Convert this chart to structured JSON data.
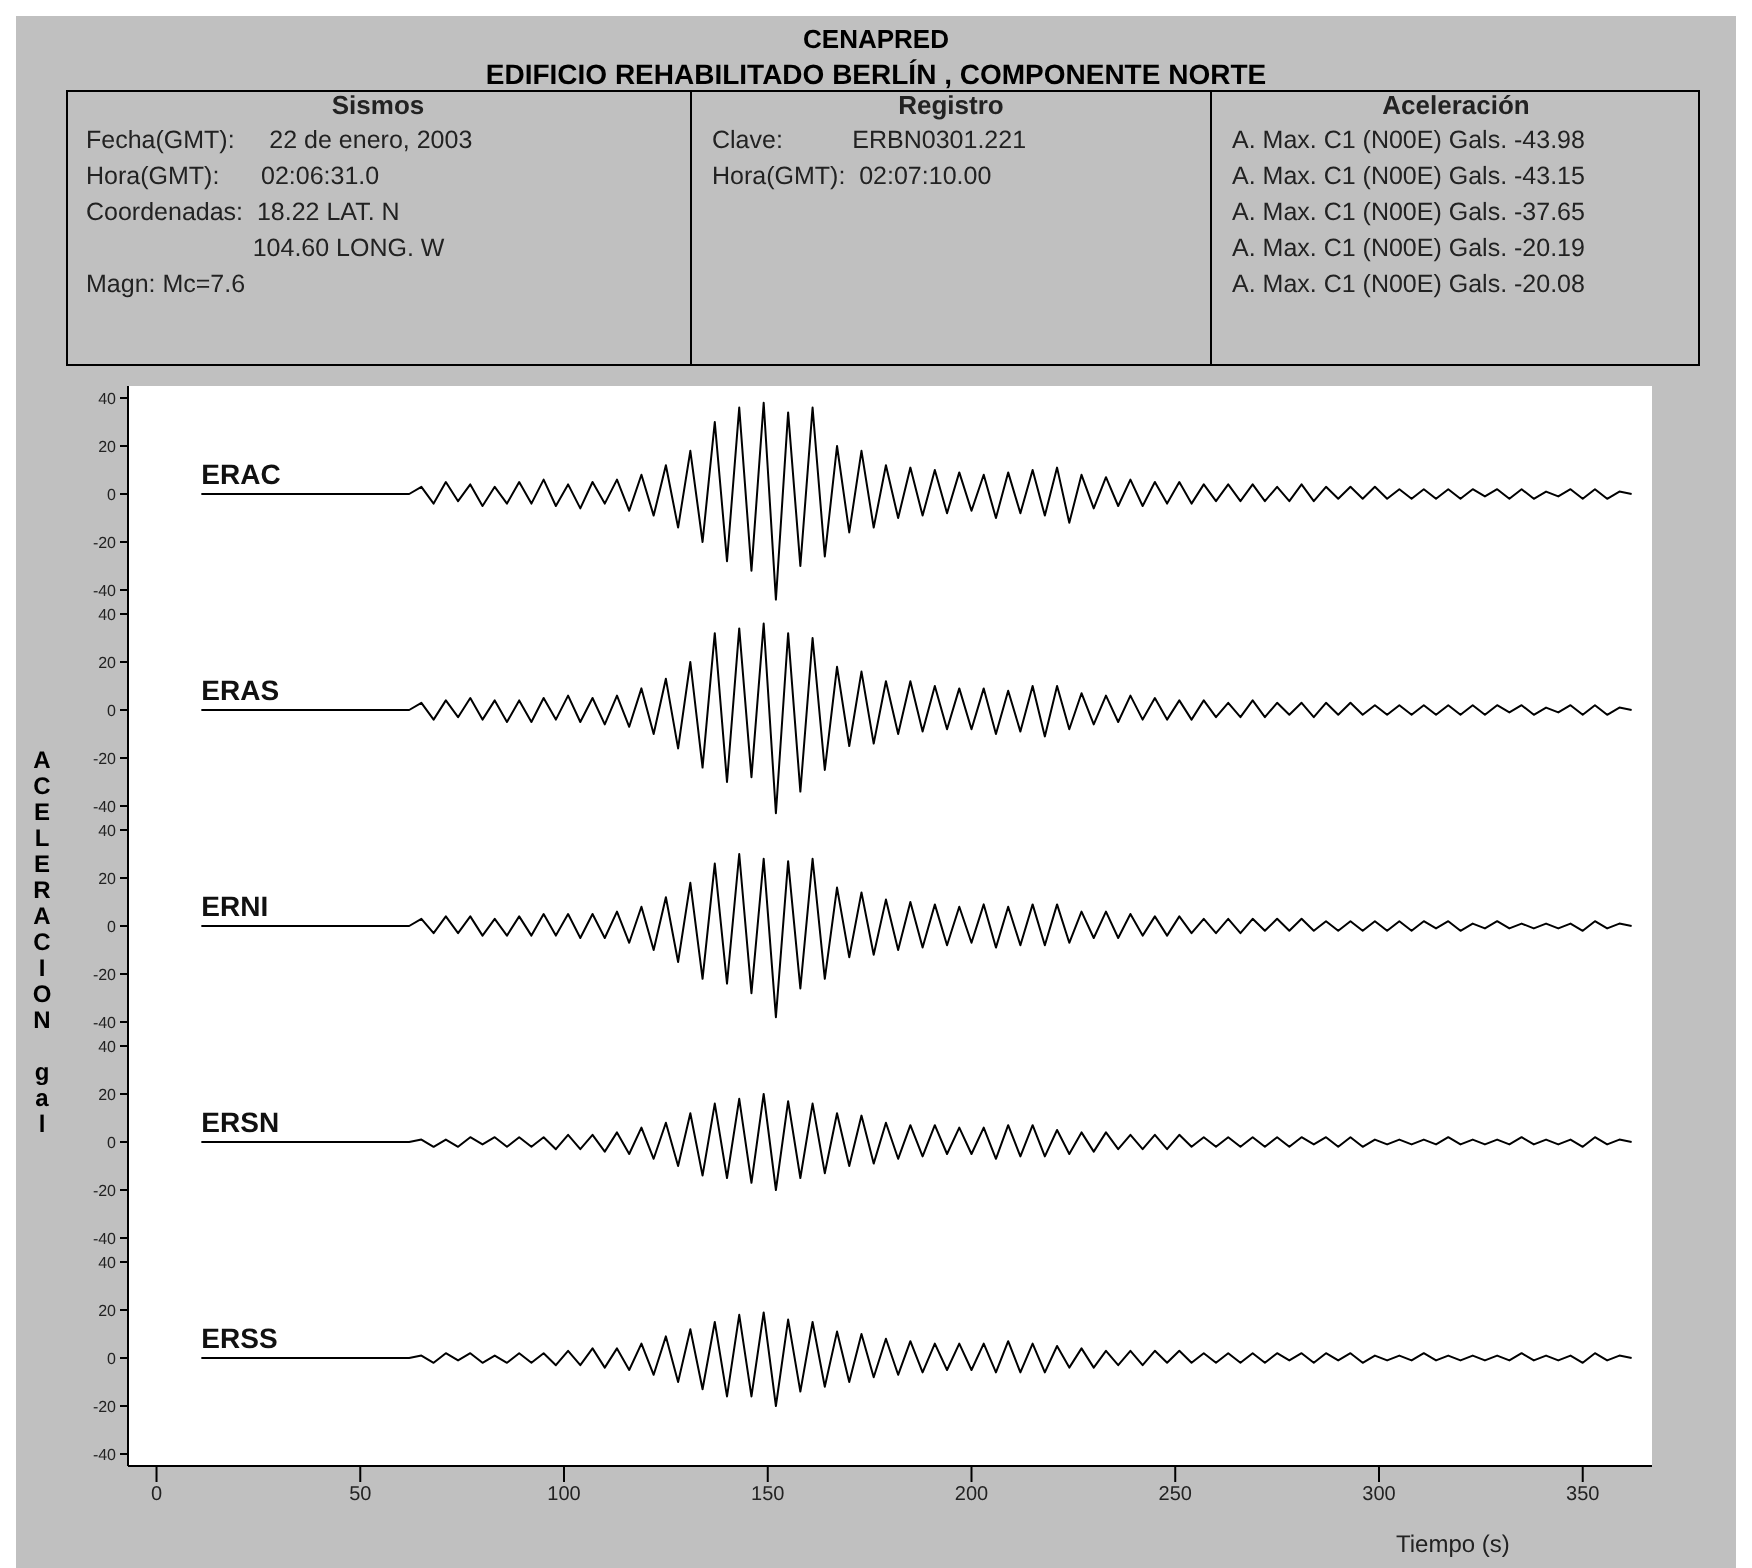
{
  "chart_data": [
    {
      "type": "line",
      "title": "CENAPRED",
      "subtitle": "EDIFICIO REHABILITADO BERLÍN , COMPONENTE NORTE",
      "ylabel": "ACELERACION gal",
      "annotations": [
        "Sismos",
        "Fecha(GMT):     22 de enero, 2003",
        "Hora(GMT):      02:06:31.0",
        "Coordenadas:  18.22 LAT. N",
        "                        104.60 LONG. W",
        "Magn: Mc=7.6",
        "Registro",
        "Clave:          ERBN0301.221",
        "Hora(GMT):  02:07:10.00",
        "Aceleración",
        "A. Max. C1 (N00E) Gals. -43.98",
        "A. Max. C1 (N00E) Gals. -43.15",
        "A. Max. C1 (N00E) Gals. -37.65",
        "A. Max. C1 (N00E) Gals. -20.19",
        "A. Max. C1 (N00E) Gals. -20.08"
      ],
      "x": [
        11,
        62,
        65,
        68,
        71,
        74,
        77,
        80,
        83,
        86,
        89,
        92,
        95,
        98,
        101,
        104,
        107,
        110,
        113,
        116,
        119,
        122,
        125,
        128,
        131,
        134,
        137,
        140,
        143,
        146,
        149,
        152,
        155,
        158,
        161,
        164,
        167,
        170,
        173,
        176,
        179,
        182,
        185,
        188,
        191,
        194,
        197,
        200,
        203,
        206,
        209,
        212,
        215,
        218,
        221,
        224,
        227,
        230,
        233,
        236,
        239,
        242,
        245,
        248,
        251,
        254,
        257,
        260,
        263,
        266,
        269,
        272,
        275,
        278,
        281,
        284,
        287,
        290,
        293,
        296,
        299,
        302,
        305,
        308,
        311,
        314,
        317,
        320,
        323,
        326,
        329,
        332,
        335,
        338,
        341,
        344,
        347,
        350,
        353,
        356,
        359,
        362
      ],
      "series": [
        {
          "name": "ERAC",
          "color": "#000000",
          "values": [
            0,
            0,
            3,
            -4,
            5,
            -3,
            4,
            -5,
            3,
            -4,
            5,
            -4,
            6,
            -5,
            4,
            -6,
            5,
            -4,
            6,
            -7,
            8,
            -9,
            12,
            -14,
            18,
            -20,
            30,
            -28,
            36,
            -32,
            38,
            -44,
            34,
            -30,
            36,
            -26,
            20,
            -16,
            18,
            -14,
            12,
            -10,
            11,
            -9,
            10,
            -8,
            9,
            -7,
            8,
            -10,
            9,
            -8,
            10,
            -9,
            11,
            -12,
            8,
            -6,
            7,
            -5,
            6,
            -5,
            5,
            -4,
            5,
            -4,
            4,
            -3,
            4,
            -3,
            4,
            -3,
            3,
            -3,
            4,
            -3,
            3,
            -2,
            3,
            -2,
            3,
            -2,
            2,
            -2,
            2,
            -2,
            2,
            -2,
            2,
            -1,
            2,
            -2,
            2,
            -2,
            1,
            -1,
            2,
            -2,
            2,
            -2,
            1,
            0
          ]
        }
      ],
      "xlim": [
        -7,
        367
      ],
      "xticks": [
        0,
        50,
        100,
        150,
        200,
        250,
        300,
        350
      ],
      "ylim": [
        -45,
        45
      ],
      "yticks": [
        40,
        20,
        0,
        -20,
        -40
      ],
      "tick_labels": "y",
      "grid": false,
      "marker": "none",
      "line_style": "solid"
    },
    {
      "type": "line",
      "x": [
        11,
        62,
        65,
        68,
        71,
        74,
        77,
        80,
        83,
        86,
        89,
        92,
        95,
        98,
        101,
        104,
        107,
        110,
        113,
        116,
        119,
        122,
        125,
        128,
        131,
        134,
        137,
        140,
        143,
        146,
        149,
        152,
        155,
        158,
        161,
        164,
        167,
        170,
        173,
        176,
        179,
        182,
        185,
        188,
        191,
        194,
        197,
        200,
        203,
        206,
        209,
        212,
        215,
        218,
        221,
        224,
        227,
        230,
        233,
        236,
        239,
        242,
        245,
        248,
        251,
        254,
        257,
        260,
        263,
        266,
        269,
        272,
        275,
        278,
        281,
        284,
        287,
        290,
        293,
        296,
        299,
        302,
        305,
        308,
        311,
        314,
        317,
        320,
        323,
        326,
        329,
        332,
        335,
        338,
        341,
        344,
        347,
        350,
        353,
        356,
        359,
        362
      ],
      "series": [
        {
          "name": "ERAS",
          "color": "#000000",
          "values": [
            0,
            0,
            3,
            -4,
            4,
            -3,
            5,
            -4,
            4,
            -5,
            4,
            -5,
            5,
            -4,
            6,
            -5,
            5,
            -6,
            6,
            -7,
            9,
            -10,
            13,
            -16,
            20,
            -24,
            32,
            -30,
            34,
            -28,
            36,
            -43,
            32,
            -34,
            30,
            -25,
            18,
            -15,
            16,
            -14,
            12,
            -10,
            12,
            -9,
            10,
            -8,
            9,
            -8,
            9,
            -10,
            8,
            -9,
            10,
            -11,
            10,
            -8,
            7,
            -6,
            6,
            -5,
            6,
            -4,
            5,
            -4,
            4,
            -4,
            4,
            -3,
            3,
            -3,
            4,
            -3,
            3,
            -2,
            3,
            -3,
            3,
            -2,
            3,
            -2,
            2,
            -2,
            2,
            -2,
            2,
            -2,
            2,
            -2,
            2,
            -2,
            2,
            -1,
            2,
            -2,
            1,
            -1,
            2,
            -2,
            2,
            -2,
            1,
            0
          ]
        }
      ],
      "xlim": [
        -7,
        367
      ],
      "xticks": [
        0,
        50,
        100,
        150,
        200,
        250,
        300,
        350
      ],
      "ylim": [
        -45,
        45
      ],
      "yticks": [
        40,
        20,
        0,
        -20,
        -40
      ],
      "tick_labels": "y",
      "grid": false,
      "marker": "none",
      "line_style": "solid"
    },
    {
      "type": "line",
      "x": [
        11,
        62,
        65,
        68,
        71,
        74,
        77,
        80,
        83,
        86,
        89,
        92,
        95,
        98,
        101,
        104,
        107,
        110,
        113,
        116,
        119,
        122,
        125,
        128,
        131,
        134,
        137,
        140,
        143,
        146,
        149,
        152,
        155,
        158,
        161,
        164,
        167,
        170,
        173,
        176,
        179,
        182,
        185,
        188,
        191,
        194,
        197,
        200,
        203,
        206,
        209,
        212,
        215,
        218,
        221,
        224,
        227,
        230,
        233,
        236,
        239,
        242,
        245,
        248,
        251,
        254,
        257,
        260,
        263,
        266,
        269,
        272,
        275,
        278,
        281,
        284,
        287,
        290,
        293,
        296,
        299,
        302,
        305,
        308,
        311,
        314,
        317,
        320,
        323,
        326,
        329,
        332,
        335,
        338,
        341,
        344,
        347,
        350,
        353,
        356,
        359,
        362
      ],
      "series": [
        {
          "name": "ERNI",
          "color": "#000000",
          "values": [
            0,
            0,
            3,
            -3,
            4,
            -3,
            4,
            -4,
            3,
            -4,
            4,
            -4,
            5,
            -4,
            5,
            -5,
            5,
            -5,
            6,
            -7,
            8,
            -10,
            12,
            -15,
            18,
            -22,
            26,
            -24,
            30,
            -28,
            28,
            -38,
            27,
            -26,
            28,
            -22,
            16,
            -13,
            14,
            -12,
            11,
            -10,
            10,
            -9,
            9,
            -8,
            8,
            -7,
            9,
            -9,
            8,
            -8,
            9,
            -8,
            9,
            -7,
            6,
            -5,
            6,
            -5,
            5,
            -4,
            4,
            -4,
            4,
            -3,
            3,
            -3,
            3,
            -3,
            3,
            -2,
            3,
            -2,
            3,
            -2,
            2,
            -2,
            2,
            -2,
            2,
            -2,
            2,
            -2,
            2,
            -1,
            2,
            -2,
            1,
            -1,
            2,
            -1,
            1,
            -1,
            1,
            -1,
            1,
            -2,
            2,
            -1,
            1,
            0
          ]
        }
      ],
      "xlim": [
        -7,
        367
      ],
      "xticks": [
        0,
        50,
        100,
        150,
        200,
        250,
        300,
        350
      ],
      "ylim": [
        -45,
        45
      ],
      "yticks": [
        40,
        20,
        0,
        -20,
        -40
      ],
      "tick_labels": "y",
      "grid": false,
      "marker": "none",
      "line_style": "solid"
    },
    {
      "type": "line",
      "x": [
        11,
        62,
        65,
        68,
        71,
        74,
        77,
        80,
        83,
        86,
        89,
        92,
        95,
        98,
        101,
        104,
        107,
        110,
        113,
        116,
        119,
        122,
        125,
        128,
        131,
        134,
        137,
        140,
        143,
        146,
        149,
        152,
        155,
        158,
        161,
        164,
        167,
        170,
        173,
        176,
        179,
        182,
        185,
        188,
        191,
        194,
        197,
        200,
        203,
        206,
        209,
        212,
        215,
        218,
        221,
        224,
        227,
        230,
        233,
        236,
        239,
        242,
        245,
        248,
        251,
        254,
        257,
        260,
        263,
        266,
        269,
        272,
        275,
        278,
        281,
        284,
        287,
        290,
        293,
        296,
        299,
        302,
        305,
        308,
        311,
        314,
        317,
        320,
        323,
        326,
        329,
        332,
        335,
        338,
        341,
        344,
        347,
        350,
        353,
        356,
        359,
        362
      ],
      "series": [
        {
          "name": "ERSN",
          "color": "#000000",
          "values": [
            0,
            0,
            1,
            -2,
            1,
            -2,
            2,
            -1,
            2,
            -2,
            2,
            -2,
            2,
            -3,
            3,
            -3,
            3,
            -4,
            4,
            -5,
            6,
            -7,
            8,
            -10,
            12,
            -14,
            16,
            -15,
            18,
            -17,
            20,
            -20,
            17,
            -15,
            16,
            -13,
            12,
            -10,
            11,
            -9,
            8,
            -7,
            7,
            -6,
            7,
            -5,
            6,
            -5,
            6,
            -7,
            7,
            -6,
            7,
            -6,
            5,
            -5,
            4,
            -4,
            4,
            -3,
            3,
            -3,
            3,
            -3,
            3,
            -2,
            2,
            -2,
            2,
            -2,
            2,
            -2,
            2,
            -2,
            2,
            -1,
            2,
            -2,
            2,
            -2,
            1,
            -1,
            1,
            -1,
            1,
            -1,
            2,
            -1,
            1,
            -1,
            1,
            -1,
            2,
            -1,
            1,
            -1,
            1,
            -2,
            2,
            -1,
            1,
            0
          ]
        }
      ],
      "xlim": [
        -7,
        367
      ],
      "xticks": [
        0,
        50,
        100,
        150,
        200,
        250,
        300,
        350
      ],
      "ylim": [
        -45,
        45
      ],
      "yticks": [
        40,
        20,
        0,
        -20,
        -40
      ],
      "tick_labels": "y",
      "grid": false,
      "marker": "none",
      "line_style": "solid"
    },
    {
      "type": "line",
      "xlabel": "Tiempo (s)",
      "x": [
        11,
        62,
        65,
        68,
        71,
        74,
        77,
        80,
        83,
        86,
        89,
        92,
        95,
        98,
        101,
        104,
        107,
        110,
        113,
        116,
        119,
        122,
        125,
        128,
        131,
        134,
        137,
        140,
        143,
        146,
        149,
        152,
        155,
        158,
        161,
        164,
        167,
        170,
        173,
        176,
        179,
        182,
        185,
        188,
        191,
        194,
        197,
        200,
        203,
        206,
        209,
        212,
        215,
        218,
        221,
        224,
        227,
        230,
        233,
        236,
        239,
        242,
        245,
        248,
        251,
        254,
        257,
        260,
        263,
        266,
        269,
        272,
        275,
        278,
        281,
        284,
        287,
        290,
        293,
        296,
        299,
        302,
        305,
        308,
        311,
        314,
        317,
        320,
        323,
        326,
        329,
        332,
        335,
        338,
        341,
        344,
        347,
        350,
        353,
        356,
        359,
        362
      ],
      "series": [
        {
          "name": "ERSS",
          "color": "#000000",
          "values": [
            0,
            0,
            1,
            -2,
            2,
            -1,
            2,
            -2,
            1,
            -2,
            2,
            -2,
            2,
            -3,
            3,
            -3,
            4,
            -4,
            4,
            -5,
            6,
            -7,
            9,
            -10,
            12,
            -13,
            15,
            -16,
            18,
            -16,
            19,
            -20,
            16,
            -14,
            15,
            -12,
            11,
            -10,
            10,
            -8,
            8,
            -7,
            7,
            -6,
            6,
            -5,
            6,
            -5,
            6,
            -6,
            7,
            -6,
            6,
            -6,
            5,
            -4,
            4,
            -4,
            3,
            -3,
            3,
            -3,
            3,
            -2,
            3,
            -2,
            2,
            -2,
            2,
            -2,
            2,
            -2,
            2,
            -1,
            2,
            -2,
            2,
            -1,
            2,
            -2,
            1,
            -1,
            1,
            -1,
            2,
            -1,
            1,
            -1,
            1,
            -1,
            1,
            -1,
            2,
            -1,
            1,
            -1,
            1,
            -2,
            2,
            -1,
            1,
            0
          ]
        }
      ],
      "xlim": [
        -7,
        367
      ],
      "xticks": [
        0,
        50,
        100,
        150,
        200,
        250,
        300,
        350
      ],
      "ylim": [
        -45,
        45
      ],
      "yticks": [
        40,
        20,
        0,
        -20,
        -40
      ],
      "grid": false,
      "marker": "none",
      "line_style": "solid"
    }
  ]
}
